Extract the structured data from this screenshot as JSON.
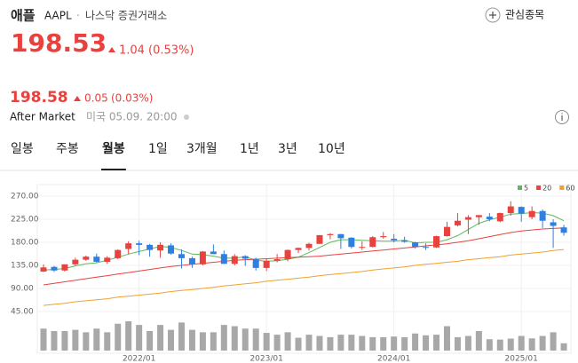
{
  "header": {
    "name": "애플",
    "ticker": "AAPL",
    "separator": "·",
    "exchange": "나스닥 증권거래소",
    "watch": "관심종목",
    "price": "198.53",
    "change": "1.04",
    "change_pct": "(0.53%)"
  },
  "after_market": {
    "price": "198.58",
    "change": "0.05",
    "change_pct": "(0.03%)",
    "label": "After Market",
    "time": "미국 05.09. 20:00"
  },
  "tabs": [
    "일봉",
    "주봉",
    "월봉",
    "1일",
    "3개월",
    "1년",
    "3년",
    "10년"
  ],
  "selected_tab": 2,
  "chart_data": {
    "type": "candlestick",
    "categories": [
      null,
      null,
      null,
      null,
      null,
      null,
      null,
      null,
      null,
      "2022/01",
      null,
      null,
      null,
      null,
      null,
      null,
      null,
      null,
      null,
      null,
      null,
      "2023/01",
      null,
      null,
      null,
      null,
      null,
      null,
      null,
      null,
      null,
      null,
      null,
      "2024/01",
      null,
      null,
      null,
      null,
      null,
      null,
      null,
      null,
      null,
      null,
      null,
      "2025/01",
      null,
      null,
      null,
      null
    ],
    "open": [
      123,
      132,
      125,
      137,
      146,
      152,
      142,
      149,
      167,
      178,
      175,
      164,
      174,
      157,
      149,
      137,
      162,
      157,
      138,
      153,
      148,
      130,
      144,
      147,
      165,
      169,
      177,
      194,
      196,
      189,
      171,
      171,
      190,
      187,
      184,
      180,
      171,
      170,
      192,
      213,
      224,
      229,
      230,
      221,
      237,
      249,
      229,
      241,
      219,
      209
    ],
    "high": [
      137,
      134,
      137,
      150,
      154,
      158,
      153,
      166,
      182,
      183,
      177,
      180,
      178,
      166,
      152,
      163,
      176,
      164,
      157,
      155,
      150,
      147,
      157,
      166,
      170,
      179,
      194,
      198,
      196,
      190,
      182,
      192,
      200,
      196,
      191,
      181,
      178,
      193,
      220,
      237,
      233,
      233,
      237,
      238,
      260,
      250,
      250,
      244,
      225,
      214
    ],
    "low": [
      122,
      122,
      123,
      135,
      144,
      141,
      138,
      147,
      157,
      155,
      152,
      150,
      156,
      129,
      130,
      135,
      157,
      138,
      135,
      134,
      125,
      124,
      141,
      143,
      159,
      164,
      177,
      186,
      167,
      168,
      165,
      170,
      187,
      180,
      179,
      168,
      165,
      169,
      191,
      211,
      196,
      214,
      221,
      219,
      232,
      220,
      225,
      208,
      169,
      193
    ],
    "close": [
      131,
      125,
      137,
      146,
      152,
      142,
      150,
      165,
      178,
      175,
      165,
      175,
      158,
      149,
      137,
      162,
      157,
      138,
      153,
      148,
      130,
      144,
      147,
      165,
      169,
      177,
      194,
      196,
      188,
      171,
      171,
      190,
      192,
      184,
      181,
      171,
      170,
      192,
      210,
      222,
      229,
      233,
      225,
      237,
      250,
      236,
      241,
      222,
      212,
      198.53
    ],
    "volume": [
      1800,
      1600,
      1600,
      1700,
      1500,
      1800,
      1500,
      2200,
      2400,
      2100,
      1600,
      2100,
      1700,
      2300,
      1700,
      1500,
      1500,
      2100,
      2000,
      1800,
      1800,
      1450,
      1300,
      1500,
      1050,
      1300,
      1200,
      1100,
      1300,
      1300,
      1200,
      1100,
      1100,
      1150,
      1100,
      1400,
      1250,
      1300,
      2000,
      1100,
      1200,
      1600,
      930,
      900,
      980,
      1200,
      1000,
      1200,
      1500,
      600
    ],
    "series": [
      {
        "name": "5",
        "color": "#5cb85c",
        "values": [
          126,
          127,
          129,
          134,
          138,
          140,
          145,
          151,
          157,
          162,
          167,
          172,
          170,
          164,
          157,
          156,
          153,
          149,
          149,
          152,
          145,
          143,
          144,
          147,
          151,
          160,
          170,
          180,
          185,
          185,
          184,
          183,
          182,
          182,
          184,
          179,
          180,
          180,
          185,
          193,
          205,
          217,
          224,
          229,
          235,
          236,
          238,
          237,
          232,
          222
        ]
      },
      {
        "name": "20",
        "color": "#e8413e",
        "values": [
          97,
          100,
          103,
          106,
          109,
          112,
          115,
          118,
          121,
          124,
          127,
          130,
          133,
          135,
          137,
          139,
          141,
          143,
          145,
          146,
          147,
          148,
          149,
          150,
          151,
          152,
          153,
          155,
          157,
          159,
          161,
          163,
          165,
          167,
          169,
          171,
          173,
          175,
          177,
          180,
          183,
          187,
          191,
          195,
          199,
          202,
          204,
          206,
          207,
          208
        ]
      },
      {
        "name": "60",
        "color": "#f0a030",
        "values": [
          57,
          59,
          61,
          64,
          66,
          68,
          70,
          73,
          75,
          77,
          79,
          81,
          84,
          86,
          88,
          90,
          92,
          95,
          97,
          99,
          101,
          104,
          106,
          108,
          110,
          112,
          115,
          117,
          119,
          121,
          123,
          126,
          128,
          130,
          132,
          135,
          137,
          139,
          141,
          143,
          146,
          148,
          150,
          152,
          155,
          157,
          159,
          161,
          164,
          166
        ]
      }
    ],
    "ylim": [
      45,
      270
    ],
    "yticks": [
      {
        "value": 270,
        "label": "270.00"
      },
      {
        "value": 225,
        "label": "225.00"
      },
      {
        "value": 180,
        "label": "180.00"
      },
      {
        "value": 135,
        "label": "135.00"
      },
      {
        "value": 90,
        "label": "90.00"
      },
      {
        "value": 45,
        "label": "45.00"
      }
    ],
    "up_color": "#e8413e",
    "down_color": "#2f7fe0",
    "volume_color": "#a8a8a8",
    "grid": true
  }
}
